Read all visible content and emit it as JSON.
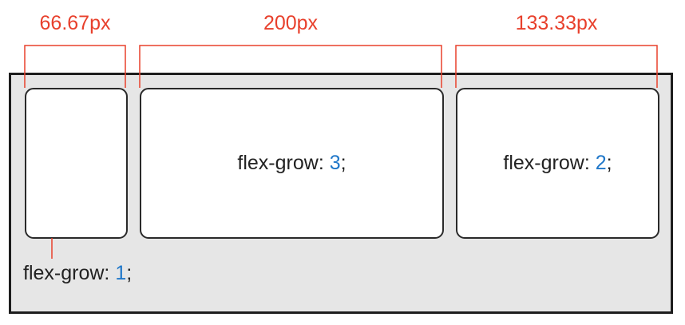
{
  "measurements": {
    "item1": "66.67px",
    "item2": "200px",
    "item3": "133.33px"
  },
  "items": [
    {
      "property": "flex-grow: ",
      "value": "1",
      "terminator": ";"
    },
    {
      "property": "flex-grow: ",
      "value": "3",
      "terminator": ";"
    },
    {
      "property": "flex-grow: ",
      "value": "2",
      "terminator": ";"
    }
  ],
  "colors": {
    "measurement": "#e8402c",
    "value": "#1f77c9",
    "container_fill": "#e6e6e6",
    "border": "#1d1d1d"
  }
}
